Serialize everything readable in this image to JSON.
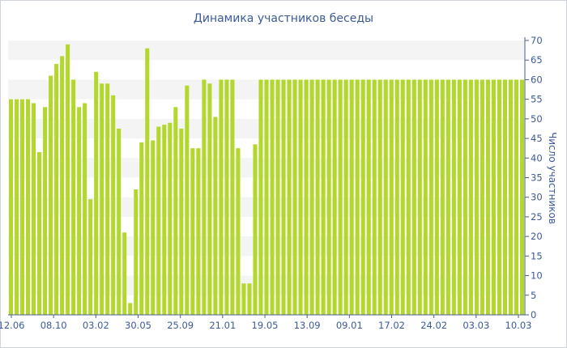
{
  "chart_data": {
    "type": "bar",
    "title": "Динамика участников беседы",
    "ylabel": "Число участников",
    "xlabel": "",
    "ylim": [
      0,
      70
    ],
    "yticks": [
      0,
      5,
      10,
      15,
      20,
      25,
      30,
      35,
      40,
      45,
      50,
      55,
      60,
      65,
      70
    ],
    "x_tick_labels": [
      "12.06",
      "08.10",
      "03.02",
      "30.05",
      "25.09",
      "21.01",
      "19.05",
      "13.09",
      "09.01",
      "17.02",
      "24.02",
      "03.03",
      "10.03"
    ],
    "grid": "horizontal bands",
    "bar_color": "#b2d82d",
    "values": [
      55,
      55,
      55,
      55,
      54,
      41.5,
      53,
      61,
      64,
      66,
      69,
      60,
      53,
      54,
      29.5,
      62,
      59,
      59,
      56,
      47.5,
      21,
      3,
      32,
      44,
      68,
      44.5,
      48,
      48.5,
      49,
      53,
      47.5,
      58.5,
      42.5,
      42.5,
      60,
      59,
      50.5,
      60,
      60,
      60,
      42.5,
      8,
      8,
      43.5,
      60,
      60,
      60,
      60,
      60,
      60,
      60,
      60,
      60,
      60,
      60,
      60,
      60,
      60,
      60,
      60,
      60,
      60,
      60,
      60,
      60,
      60,
      60,
      60,
      60,
      60,
      60,
      60,
      60,
      60,
      60,
      60,
      60,
      60,
      60,
      60,
      60,
      60,
      60,
      60,
      60,
      60,
      60,
      60,
      60,
      60,
      60
    ]
  }
}
